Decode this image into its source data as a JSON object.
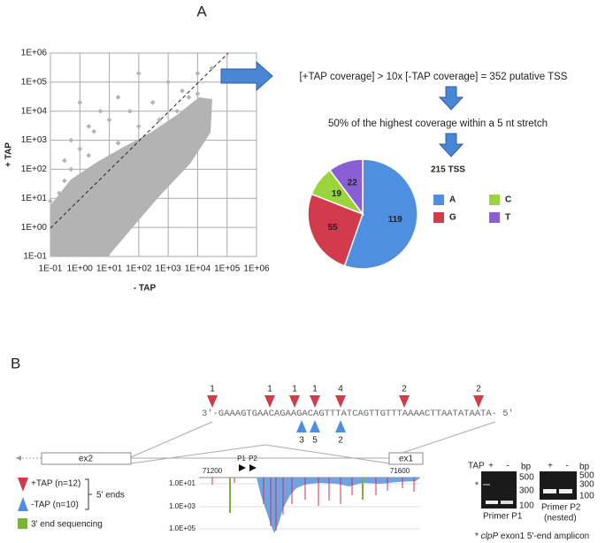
{
  "panel_labels": [
    "A",
    "B"
  ],
  "chart_data": [
    {
      "type": "scatter",
      "xlabel": "- TAP",
      "ylabel": "+ TAP",
      "log_scale": true,
      "grid": true,
      "color": "#b3b3b3",
      "xlim": [
        0.1,
        1000000
      ],
      "ylim": [
        0.1,
        1000000
      ],
      "xticks": [
        {
          "value": 0.1,
          "label": "1E-01"
        },
        {
          "value": 1,
          "label": "1E+00"
        },
        {
          "value": 10,
          "label": "1E+01"
        },
        {
          "value": 100,
          "label": "1E+02"
        },
        {
          "value": 1000,
          "label": "1E+03"
        },
        {
          "value": 10000,
          "label": "1E+04"
        },
        {
          "value": 100000,
          "label": "1E+05"
        },
        {
          "value": 1000000,
          "label": "1E+06"
        }
      ],
      "yticks": [
        {
          "value": 0.1,
          "label": "1E-01"
        },
        {
          "value": 1,
          "label": "1E+00"
        },
        {
          "value": 10,
          "label": "1E+01"
        },
        {
          "value": 100,
          "label": "1E+02"
        },
        {
          "value": 1000,
          "label": "1E+03"
        },
        {
          "value": 10000,
          "label": "1E+04"
        },
        {
          "value": 100000,
          "label": "1E+05"
        },
        {
          "value": 1000000,
          "label": "1E+06"
        }
      ],
      "x": [
        0.2,
        0.3,
        0.5,
        0.5,
        1,
        2,
        3,
        10,
        20,
        50,
        100,
        300,
        1000,
        3000,
        10000,
        30000,
        1000,
        5000,
        200,
        2,
        1,
        0.2,
        0.1,
        0.3,
        5,
        20,
        100,
        500,
        2000,
        10000
      ],
      "y": [
        15,
        40,
        100,
        1000,
        20000,
        300,
        2000,
        5000,
        800,
        10000,
        3000,
        20000,
        100000,
        50000,
        200000,
        300000,
        1000,
        30000,
        500,
        3000,
        500,
        3,
        8,
        200,
        10000,
        30000,
        200000,
        5000,
        10000,
        40000
      ]
    },
    {
      "type": "pie",
      "title": "215 TSS",
      "categories": [
        "A",
        "G",
        "C",
        "T"
      ],
      "values": [
        119,
        55,
        19,
        22
      ],
      "colors": [
        "#4f8fe0",
        "#d13b4b",
        "#9ad43c",
        "#8a5fd6"
      ]
    }
  ],
  "workflow": {
    "step1": "[+TAP coverage] > 10x [-TAP coverage] = 352 putative TSS",
    "step2": "50% of the highest coverage within a 5 nt stretch"
  },
  "panel_b": {
    "sequence": "3'-GAAAGTGAACAGAAGACAGTTTATCAGTTGTTTAAAACTTAATATAATA- 5'",
    "plus_tap_counts": [
      1,
      1,
      1,
      1,
      4,
      2,
      2
    ],
    "minus_tap_counts": [
      3,
      5,
      2
    ],
    "exons": [
      "ex2",
      "ex1"
    ],
    "primers": [
      "P1",
      "P2"
    ],
    "coverage_x_labels": [
      "71200",
      "71600"
    ],
    "coverage_y_labels": [
      "1.0E+01",
      "1.0E+03",
      "1.0E+05"
    ],
    "legend": {
      "plus_tap": "+TAP (n=12)",
      "minus_tap": "-TAP (n=10)",
      "five_prime": "5' ends",
      "three_prime": "3' end sequencing"
    },
    "gel": {
      "tap": "TAP",
      "lanes": [
        "+",
        "-",
        "+",
        "-"
      ],
      "bp": "bp",
      "sizes_p1": [
        "500",
        "300",
        "100"
      ],
      "sizes_p2": [
        "500",
        "300",
        "100"
      ],
      "star": "*",
      "primer_p1": "Primer P1",
      "primer_p2": "Primer P2",
      "nested": "(nested)",
      "footnote": [
        "* ",
        "clpP",
        " exon1 5'-end amplicon"
      ]
    }
  }
}
